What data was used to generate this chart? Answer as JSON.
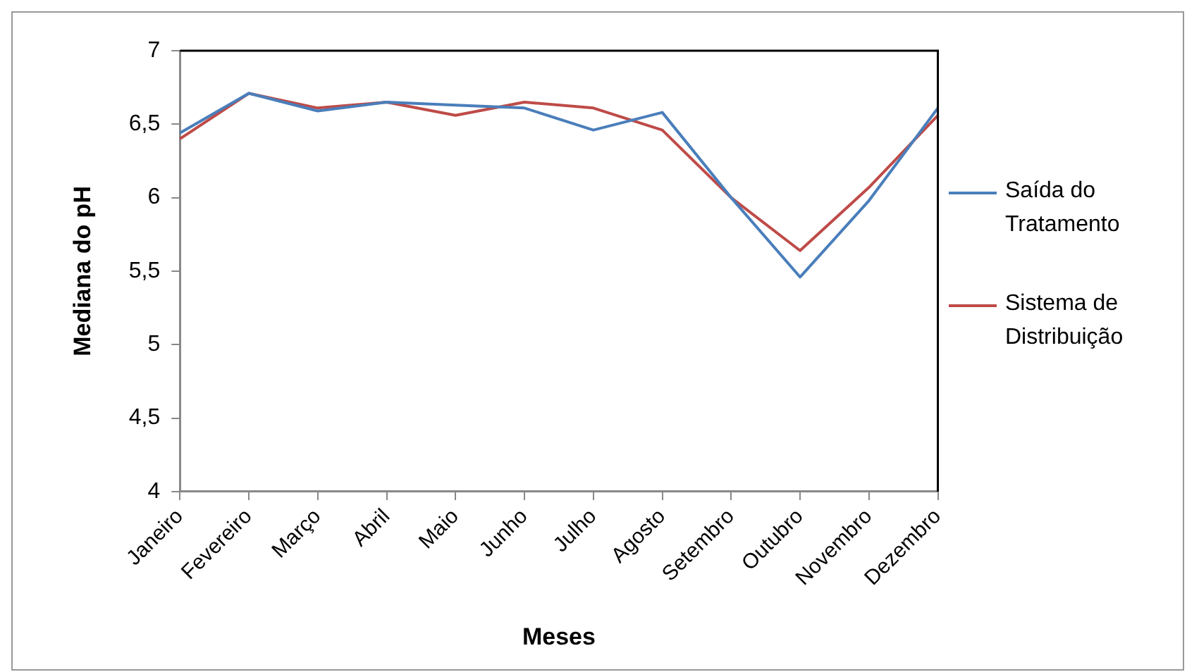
{
  "chart_data": {
    "type": "line",
    "xlabel": "Meses",
    "ylabel": "Mediana do pH",
    "categories": [
      "Janeiro",
      "Fevereiro",
      "Março",
      "Abril",
      "Maio",
      "Junho",
      "Julho",
      "Agosto",
      "Setembro",
      "Outubro",
      "Novembro",
      "Dezembro"
    ],
    "series": [
      {
        "name": "Saída do Tratamento",
        "color": "#4a7ebb",
        "values": [
          6.44,
          6.71,
          6.59,
          6.65,
          6.63,
          6.61,
          6.46,
          6.58,
          6.0,
          5.46,
          5.98,
          6.61
        ]
      },
      {
        "name": "Sistema de Distribuição",
        "color": "#be4b48",
        "values": [
          6.4,
          6.71,
          6.61,
          6.65,
          6.56,
          6.65,
          6.61,
          6.46,
          6.0,
          5.64,
          6.07,
          6.56
        ]
      }
    ],
    "ylim": [
      4,
      7
    ],
    "yticks": [
      4,
      {
        "value": 4.5,
        "label": "4,5"
      },
      5,
      {
        "value": 5.5,
        "label": "5,5"
      },
      6,
      {
        "value": 6.5,
        "label": "6,5"
      },
      7
    ],
    "grid": false,
    "legend": "right",
    "marker": "none",
    "line_style": "solid"
  }
}
